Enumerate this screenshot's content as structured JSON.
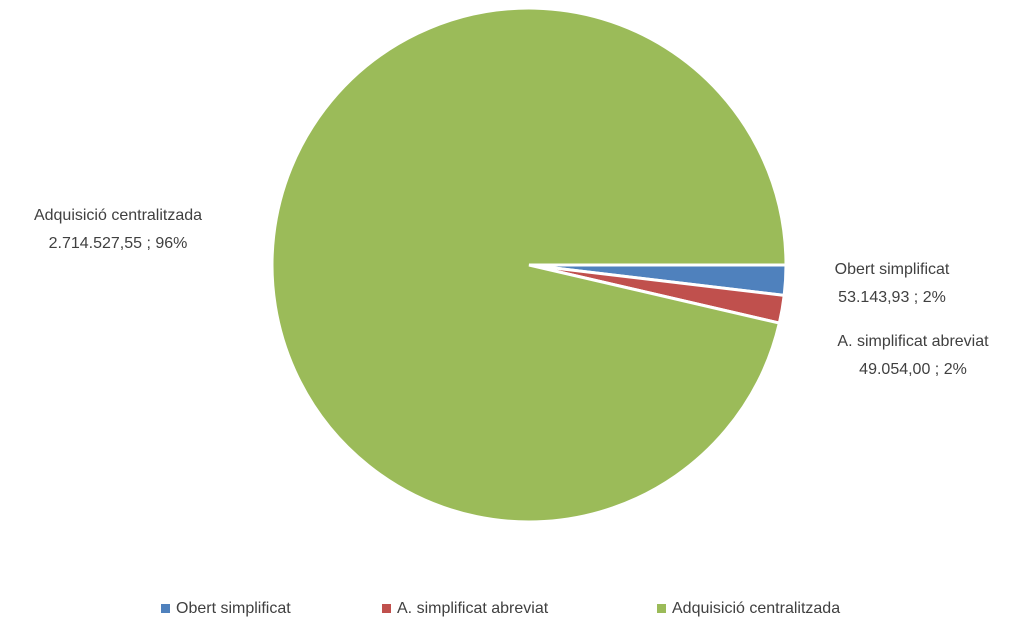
{
  "chart_data": {
    "type": "pie",
    "categories": [
      "Obert simplificat",
      "A. simplificat abreviat",
      "Adquisició centralitzada"
    ],
    "values": [
      53143.93,
      49054.0,
      2714527.55
    ],
    "value_labels": [
      "53.143,93 ; 2%",
      "49.054,00 ; 2%",
      "2.714.527,55 ; 96%"
    ],
    "colors": [
      "#4f81bd",
      "#c0504d",
      "#9bbb59"
    ],
    "legend": "bottom"
  }
}
